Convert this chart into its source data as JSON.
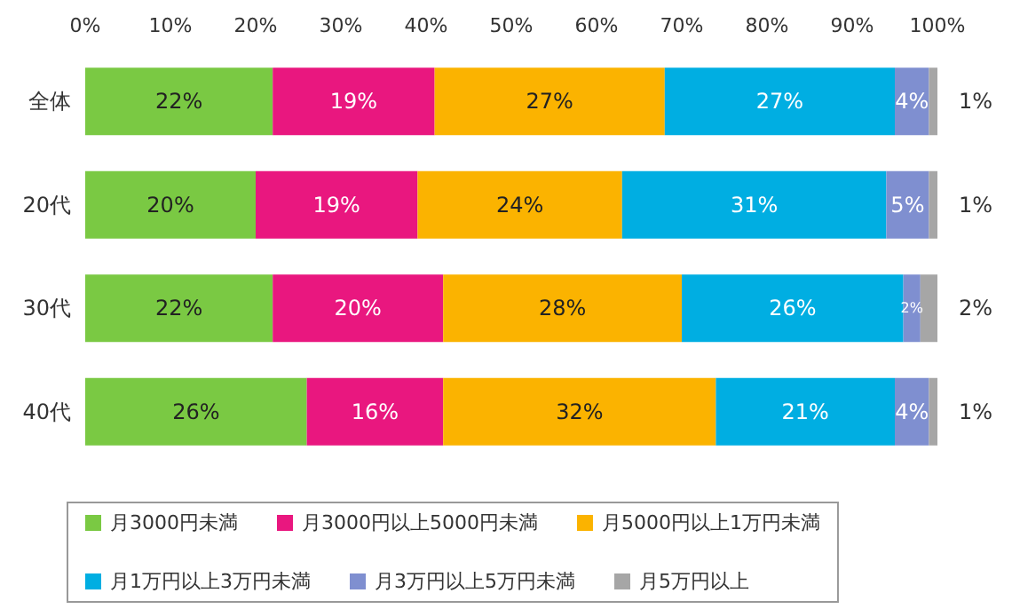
{
  "chart_data": {
    "type": "bar",
    "orientation": "horizontal",
    "stacked": true,
    "legend": "bottom",
    "categories": [
      "全体",
      "20代",
      "30代",
      "40代"
    ],
    "xlim": [
      0,
      100
    ],
    "xticks": [
      {
        "value": 0,
        "label": "0%"
      },
      {
        "value": 10,
        "label": "10%"
      },
      {
        "value": 20,
        "label": "20%"
      },
      {
        "value": 30,
        "label": "30%"
      },
      {
        "value": 40,
        "label": "40%"
      },
      {
        "value": 50,
        "label": "50%"
      },
      {
        "value": 60,
        "label": "60%"
      },
      {
        "value": 70,
        "label": "70%"
      },
      {
        "value": 80,
        "label": "80%"
      },
      {
        "value": 90,
        "label": "90%"
      },
      {
        "value": 100,
        "label": "100%"
      }
    ],
    "series": [
      {
        "name": "月3000円未満",
        "color": "#7ac943",
        "values": [
          22,
          20,
          22,
          26
        ],
        "value_labels": [
          "22%",
          "20%",
          "22%",
          "26%"
        ]
      },
      {
        "name": "月3000円以上5000円未満",
        "color": "#e9177f",
        "values": [
          19,
          19,
          20,
          16
        ],
        "value_labels": [
          "19%",
          "19%",
          "20%",
          "16%"
        ]
      },
      {
        "name": "月5000円以上1万円未満",
        "color": "#fbb300",
        "values": [
          27,
          24,
          28,
          32
        ],
        "value_labels": [
          "27%",
          "24%",
          "28%",
          "32%"
        ]
      },
      {
        "name": "月1万円以上3万円未満",
        "color": "#00aee2",
        "values": [
          27,
          31,
          26,
          21
        ],
        "value_labels": [
          "27%",
          "31%",
          "26%",
          "21%"
        ]
      },
      {
        "name": "月3万円以上5万円未満",
        "color": "#7f8fd0",
        "values": [
          4,
          5,
          2,
          4
        ],
        "value_labels": [
          "4%",
          "5%",
          "2%",
          "4%"
        ]
      },
      {
        "name": "月5万円以上",
        "color": "#a6a6a6",
        "values": [
          1,
          1,
          2,
          1
        ],
        "value_labels": [
          "1%",
          "1%",
          "2%",
          "1%"
        ]
      }
    ]
  }
}
